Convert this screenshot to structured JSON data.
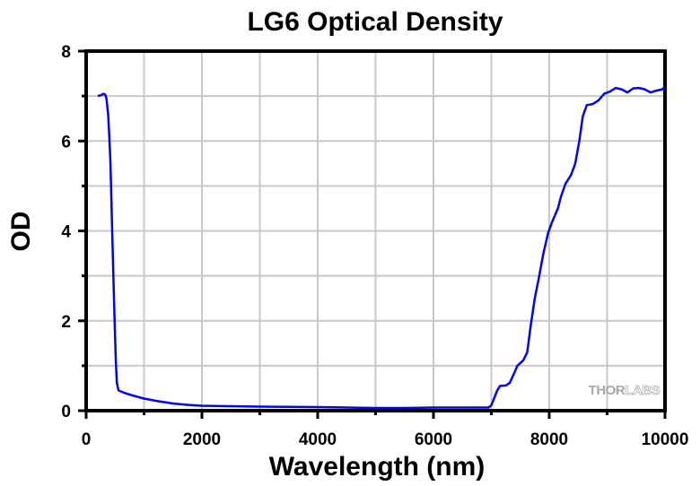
{
  "chart_data": {
    "type": "line",
    "title": "LG6 Optical Density",
    "xlabel": "Wavelength (nm)",
    "ylabel": "OD",
    "xlim": [
      0,
      10000
    ],
    "ylim": [
      0,
      8
    ],
    "x_ticks": [
      0,
      2000,
      4000,
      6000,
      8000,
      10000
    ],
    "x_tick_labels": [
      "0",
      "2000",
      "4000",
      "6000",
      "8000",
      "10000"
    ],
    "x_minor_ticks": [
      1000,
      3000,
      5000,
      7000,
      9000
    ],
    "y_ticks": [
      0,
      2,
      4,
      6,
      8
    ],
    "y_tick_labels": [
      "0",
      "2",
      "4",
      "6",
      "8"
    ],
    "y_minor_ticks": [
      1,
      3,
      5,
      7
    ],
    "grid": true,
    "legend": "none",
    "watermark": {
      "text_dark": "THOR",
      "text_light": "LABS",
      "position": "bottom-right"
    },
    "series": [
      {
        "name": "LG6",
        "color": "#0000ff",
        "x": [
          200,
          260,
          300,
          330,
          350,
          380,
          400,
          420,
          450,
          480,
          510,
          530,
          560,
          650,
          800,
          1000,
          1250,
          1500,
          1750,
          2000,
          2500,
          3000,
          3500,
          4000,
          4500,
          5000,
          5500,
          6000,
          6500,
          6950,
          7000,
          7050,
          7100,
          7150,
          7250,
          7320,
          7400,
          7450,
          7550,
          7620,
          7680,
          7750,
          7820,
          7900,
          7980,
          8050,
          8150,
          8200,
          8280,
          8380,
          8450,
          8520,
          8580,
          8650,
          8750,
          8850,
          8950,
          9050,
          9150,
          9250,
          9350,
          9450,
          9550,
          9650,
          9750,
          9850,
          9950,
          10000
        ],
        "y": [
          7.0,
          7.02,
          7.05,
          7.03,
          6.95,
          6.6,
          6.1,
          5.5,
          4.0,
          2.5,
          1.2,
          0.62,
          0.45,
          0.4,
          0.34,
          0.27,
          0.21,
          0.16,
          0.13,
          0.11,
          0.1,
          0.09,
          0.085,
          0.08,
          0.07,
          0.06,
          0.06,
          0.07,
          0.07,
          0.07,
          0.12,
          0.28,
          0.45,
          0.55,
          0.56,
          0.62,
          0.85,
          1.0,
          1.12,
          1.3,
          1.9,
          2.5,
          2.95,
          3.5,
          3.95,
          4.2,
          4.5,
          4.75,
          5.05,
          5.25,
          5.5,
          6.0,
          6.55,
          6.8,
          6.82,
          6.9,
          7.05,
          7.1,
          7.18,
          7.15,
          7.08,
          7.17,
          7.18,
          7.15,
          7.08,
          7.12,
          7.15,
          7.2
        ]
      }
    ]
  }
}
